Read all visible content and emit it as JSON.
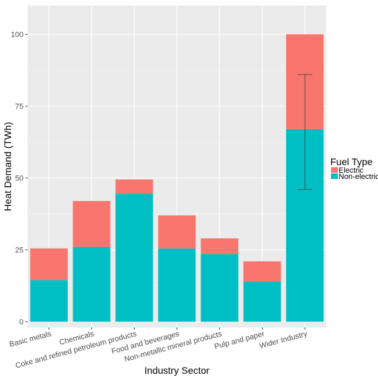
{
  "chart_data": {
    "type": "bar",
    "stacked": true,
    "categories": [
      "Basic metals",
      "Chemicals",
      "Coke and refined petroleum products",
      "Food and beverages",
      "Non-metallic mineral products",
      "Pulp and paper",
      "Wider Industry"
    ],
    "series": [
      {
        "name": "Non-electric",
        "values": [
          14.5,
          26,
          44.5,
          25.5,
          23.5,
          14,
          67
        ],
        "color": "#00BFC4"
      },
      {
        "name": "Electric",
        "values": [
          11,
          16,
          5,
          11.5,
          5.5,
          7,
          33
        ],
        "color": "#F8766D"
      }
    ],
    "error_bar": {
      "category": "Wider Industry",
      "low": 46,
      "high": 86
    },
    "xlabel": "Industry Sector",
    "ylabel": "Heat Demand (TWh)",
    "ylim": [
      -2,
      110
    ],
    "yticks": [
      0,
      25,
      50,
      75,
      100
    ],
    "grid": true,
    "legend": {
      "title": "Fuel Type",
      "entries": [
        "Electric",
        "Non-electric"
      ],
      "position": "right"
    }
  }
}
